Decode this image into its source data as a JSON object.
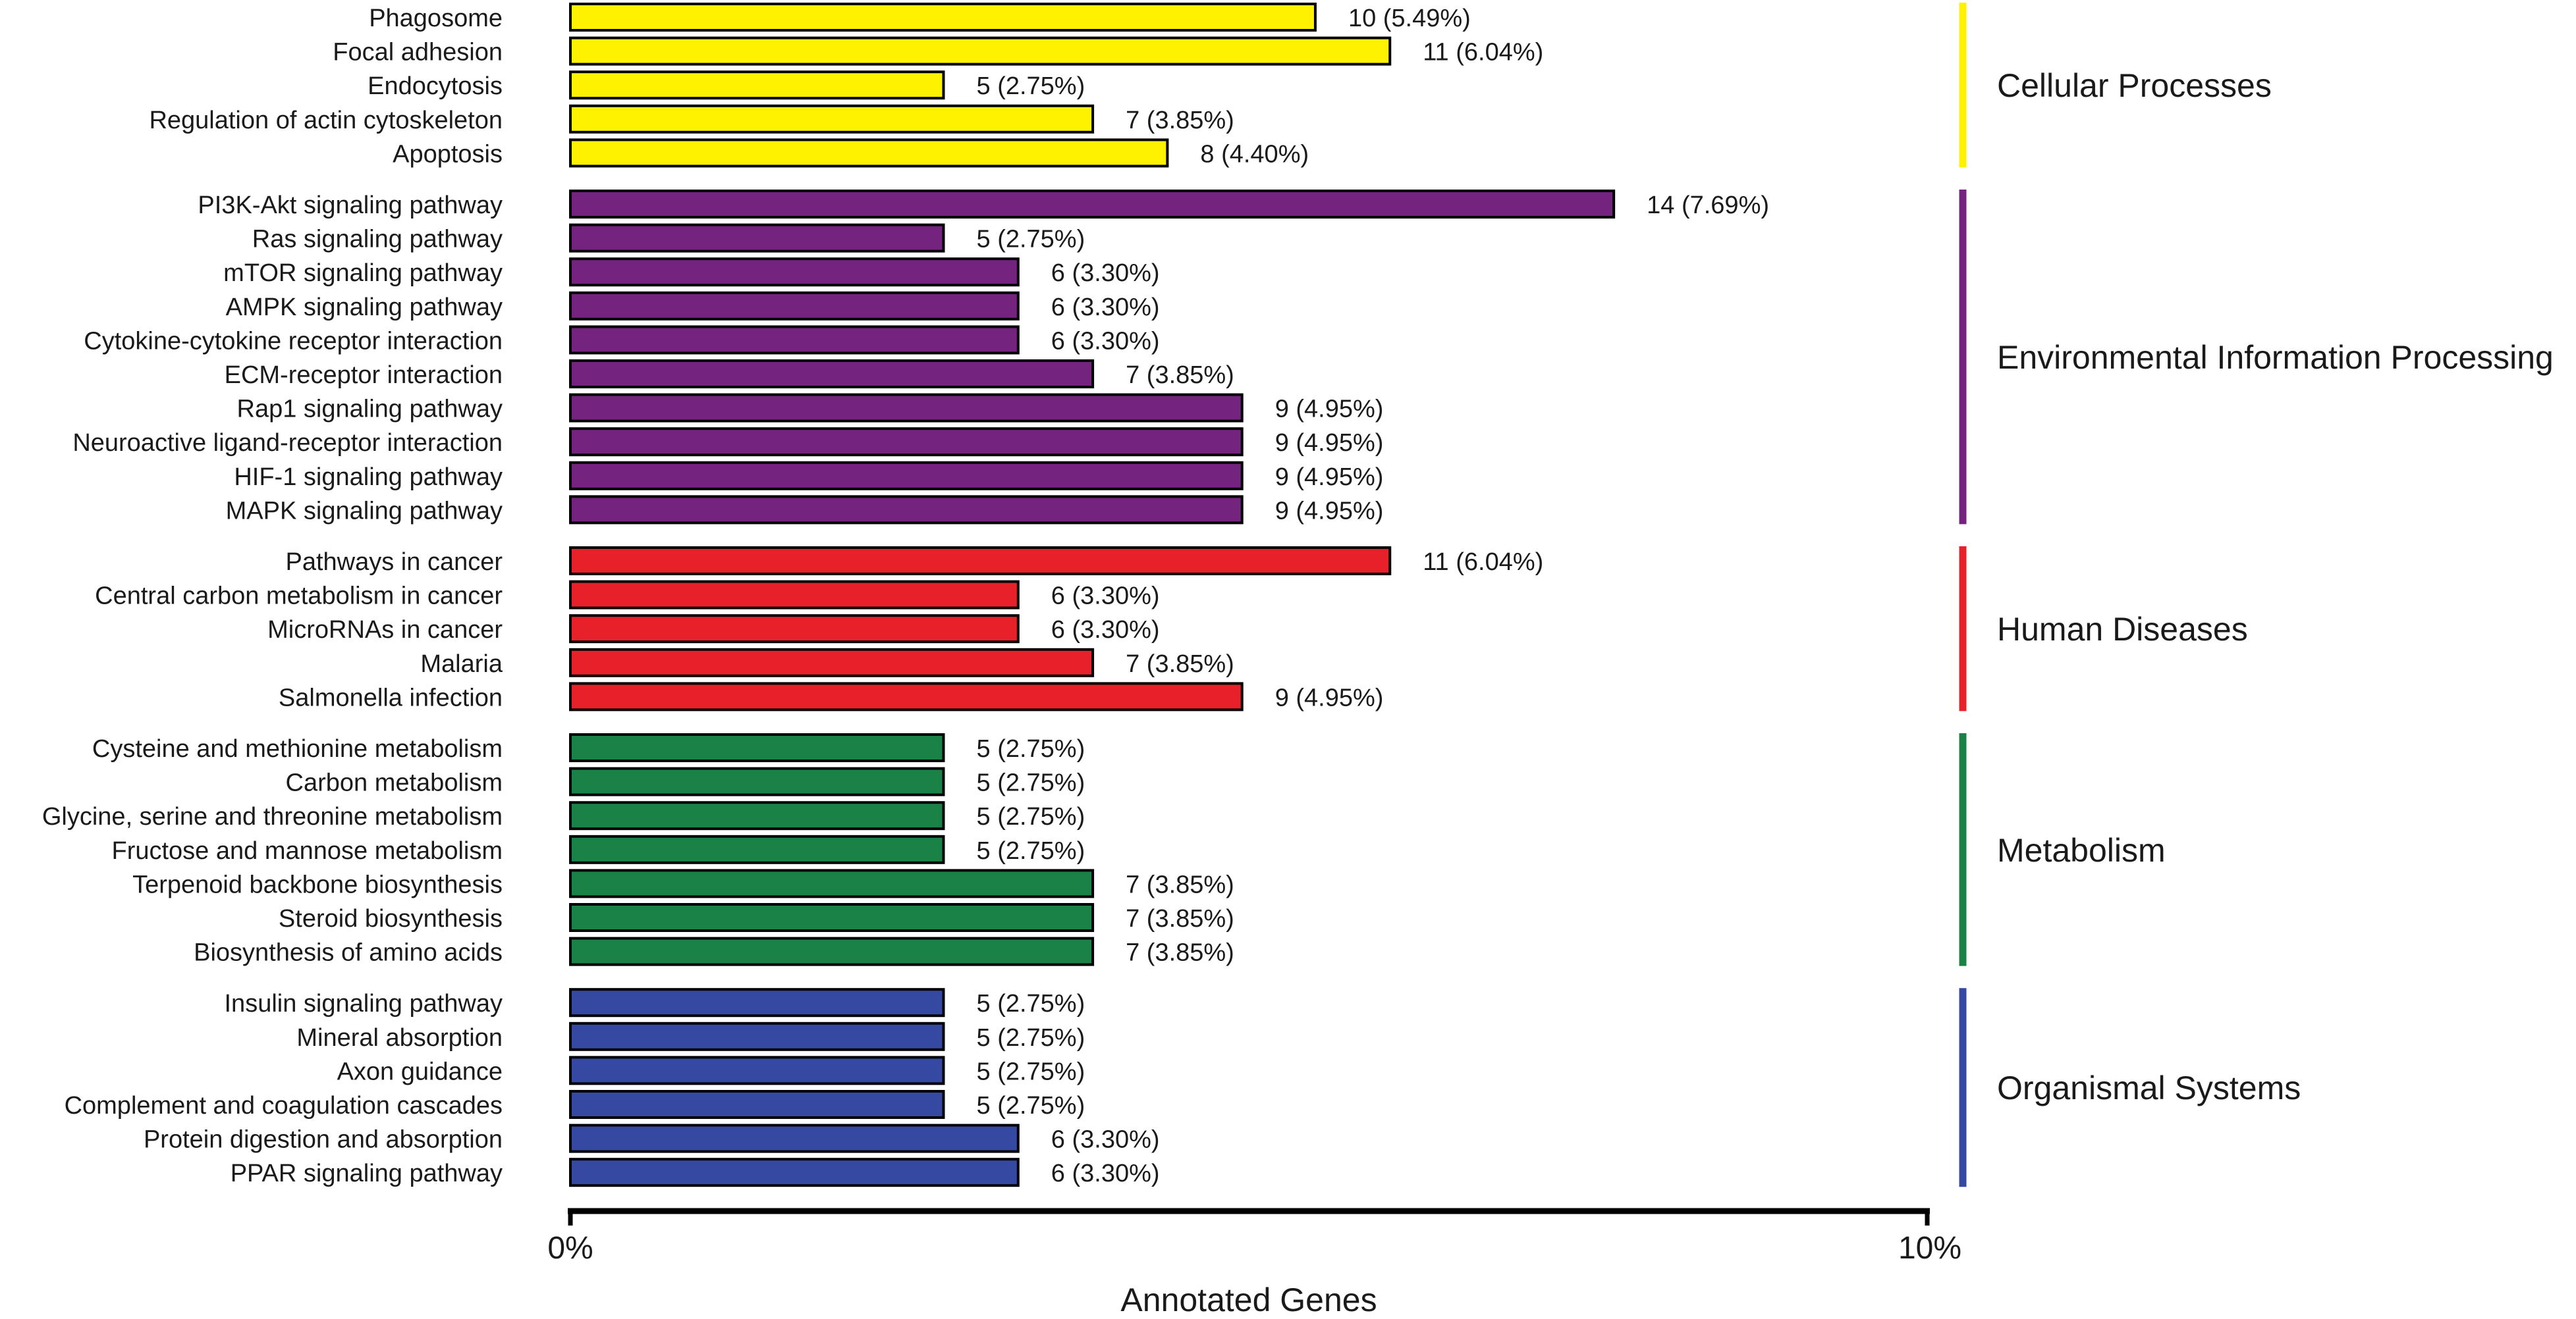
{
  "chart_data": {
    "type": "bar",
    "orientation": "horizontal",
    "xlabel": "Annotated Genes",
    "xlim_percent": [
      0,
      10
    ],
    "x_tick_labels": [
      "0%",
      "10%"
    ],
    "grid": false,
    "legend": "none",
    "groups": [
      {
        "name": "Cellular Processes",
        "color": "#FFF200",
        "items": [
          {
            "label": "Phagosome",
            "count": 10,
            "percent": 5.49,
            "value_label": "10 (5.49%)"
          },
          {
            "label": "Focal adhesion",
            "count": 11,
            "percent": 6.04,
            "value_label": "11 (6.04%)"
          },
          {
            "label": "Endocytosis",
            "count": 5,
            "percent": 2.75,
            "value_label": "5 (2.75%)"
          },
          {
            "label": "Regulation of actin cytoskeleton",
            "count": 7,
            "percent": 3.85,
            "value_label": "7 (3.85%)"
          },
          {
            "label": "Apoptosis",
            "count": 8,
            "percent": 4.4,
            "value_label": "8 (4.40%)"
          }
        ]
      },
      {
        "name": "Environmental Information Processing",
        "color": "#74237F",
        "items": [
          {
            "label": "PI3K-Akt signaling pathway",
            "count": 14,
            "percent": 7.69,
            "value_label": "14 (7.69%)"
          },
          {
            "label": "Ras signaling pathway",
            "count": 5,
            "percent": 2.75,
            "value_label": "5 (2.75%)"
          },
          {
            "label": "mTOR signaling pathway",
            "count": 6,
            "percent": 3.3,
            "value_label": "6 (3.30%)"
          },
          {
            "label": "AMPK signaling pathway",
            "count": 6,
            "percent": 3.3,
            "value_label": "6 (3.30%)"
          },
          {
            "label": "Cytokine-cytokine receptor interaction",
            "count": 6,
            "percent": 3.3,
            "value_label": "6 (3.30%)"
          },
          {
            "label": "ECM-receptor interaction",
            "count": 7,
            "percent": 3.85,
            "value_label": "7 (3.85%)"
          },
          {
            "label": "Rap1 signaling pathway",
            "count": 9,
            "percent": 4.95,
            "value_label": "9 (4.95%)"
          },
          {
            "label": "Neuroactive ligand-receptor interaction",
            "count": 9,
            "percent": 4.95,
            "value_label": "9 (4.95%)"
          },
          {
            "label": "HIF-1 signaling pathway",
            "count": 9,
            "percent": 4.95,
            "value_label": "9 (4.95%)"
          },
          {
            "label": "MAPK signaling pathway",
            "count": 9,
            "percent": 4.95,
            "value_label": "9 (4.95%)"
          }
        ]
      },
      {
        "name": "Human Diseases",
        "color": "#E8202A",
        "items": [
          {
            "label": "Pathways in cancer",
            "count": 11,
            "percent": 6.04,
            "value_label": "11 (6.04%)"
          },
          {
            "label": "Central carbon metabolism in cancer",
            "count": 6,
            "percent": 3.3,
            "value_label": "6 (3.30%)"
          },
          {
            "label": "MicroRNAs in cancer",
            "count": 6,
            "percent": 3.3,
            "value_label": "6 (3.30%)"
          },
          {
            "label": "Malaria",
            "count": 7,
            "percent": 3.85,
            "value_label": "7 (3.85%)"
          },
          {
            "label": "Salmonella infection",
            "count": 9,
            "percent": 4.95,
            "value_label": "9 (4.95%)"
          }
        ]
      },
      {
        "name": "Metabolism",
        "color": "#1A8246",
        "items": [
          {
            "label": "Cysteine and methionine metabolism",
            "count": 5,
            "percent": 2.75,
            "value_label": "5 (2.75%)"
          },
          {
            "label": "Carbon metabolism",
            "count": 5,
            "percent": 2.75,
            "value_label": "5 (2.75%)"
          },
          {
            "label": "Glycine, serine and threonine metabolism",
            "count": 5,
            "percent": 2.75,
            "value_label": "5 (2.75%)"
          },
          {
            "label": "Fructose and mannose metabolism",
            "count": 5,
            "percent": 2.75,
            "value_label": "5 (2.75%)"
          },
          {
            "label": "Terpenoid backbone biosynthesis",
            "count": 7,
            "percent": 3.85,
            "value_label": "7 (3.85%)"
          },
          {
            "label": "Steroid biosynthesis",
            "count": 7,
            "percent": 3.85,
            "value_label": "7 (3.85%)"
          },
          {
            "label": "Biosynthesis of amino acids",
            "count": 7,
            "percent": 3.85,
            "value_label": "7 (3.85%)"
          }
        ]
      },
      {
        "name": "Organismal Systems",
        "color": "#3549A2",
        "items": [
          {
            "label": "Insulin signaling pathway",
            "count": 5,
            "percent": 2.75,
            "value_label": "5 (2.75%)"
          },
          {
            "label": "Mineral absorption",
            "count": 5,
            "percent": 2.75,
            "value_label": "5 (2.75%)"
          },
          {
            "label": "Axon guidance",
            "count": 5,
            "percent": 2.75,
            "value_label": "5 (2.75%)"
          },
          {
            "label": "Complement and coagulation cascades",
            "count": 5,
            "percent": 2.75,
            "value_label": "5 (2.75%)"
          },
          {
            "label": "Protein digestion and absorption",
            "count": 6,
            "percent": 3.3,
            "value_label": "6 (3.30%)"
          },
          {
            "label": "PPAR signaling pathway",
            "count": 6,
            "percent": 3.3,
            "value_label": "6 (3.30%)"
          }
        ]
      }
    ]
  }
}
